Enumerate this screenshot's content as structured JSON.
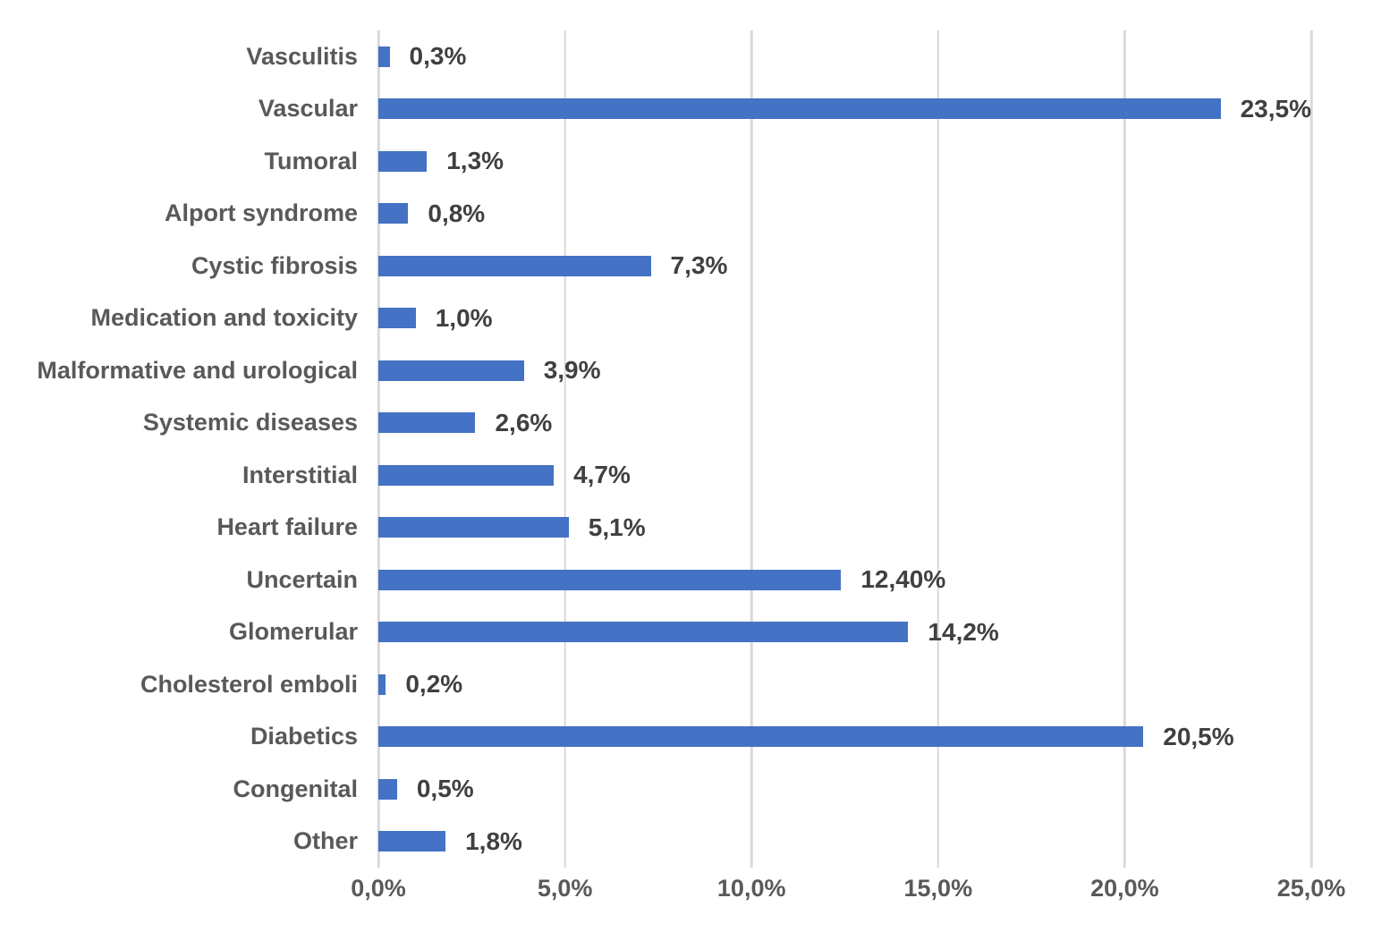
{
  "chart_data": {
    "type": "bar",
    "orientation": "horizontal",
    "title": "",
    "xlabel": "",
    "ylabel": "",
    "categories": [
      "Vasculitis",
      "Vascular",
      "Tumoral",
      "Alport syndrome",
      "Cystic fibrosis",
      "Medication and toxicity",
      "Malformative and urological",
      "Systemic diseases",
      "Interstitial",
      "Heart failure",
      "Uncertain",
      "Glomerular",
      "Cholesterol emboli",
      "Diabetics",
      "Congenital",
      "Other"
    ],
    "values": [
      0.3,
      23.5,
      1.3,
      0.8,
      7.3,
      1.0,
      3.9,
      2.6,
      4.7,
      5.1,
      12.4,
      14.2,
      0.2,
      20.5,
      0.5,
      1.8
    ],
    "value_labels": [
      "0,3%",
      "23,5%",
      "1,3%",
      "0,8%",
      "7,3%",
      "1,0%",
      "3,9%",
      "2,6%",
      "4,7%",
      "5,1%",
      "12,40%",
      "14,2%",
      "0,2%",
      "20,5%",
      "0,5%",
      "1,8%"
    ],
    "xlim": [
      0,
      25
    ],
    "x_ticks": [
      0,
      5,
      10,
      15,
      20,
      25
    ],
    "x_tick_labels": [
      "0,0%",
      "5,0%",
      "10,0%",
      "15,0%",
      "20,0%",
      "25,0%"
    ],
    "grid": true,
    "legend": false,
    "colors": {
      "bar": "#4472C4",
      "category_label": "#595959",
      "value_label": "#404040",
      "axis_label": "#595959",
      "gridline": "#D9D9D9",
      "background": "#FFFFFF"
    }
  }
}
